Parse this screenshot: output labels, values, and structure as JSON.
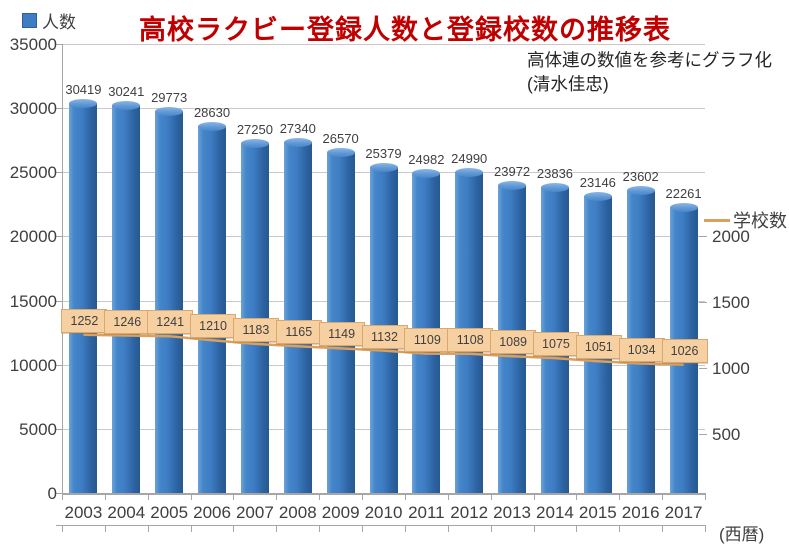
{
  "title": "高校ラクビー登録人数と登録校数の推移表",
  "annotation": {
    "line1": "高体連の数値を参考にグラフ化",
    "line2": "(清水佳忠)"
  },
  "legend": {
    "players": "人数",
    "schools": "学校数"
  },
  "axis_caption": "(西暦)",
  "colors": {
    "title_red": "#c00000",
    "bar_blue": "#3e7dc4",
    "line_orange": "#d9a05f",
    "label_box_fill": "#f7d0a2",
    "label_box_border": "#d8a873",
    "gridline": "#c9c9c9",
    "axis": "#a6a6a6",
    "text": "#3f3f3f"
  },
  "chart_data": {
    "type": "bar",
    "title": "高校ラクビー登録人数と登録校数の推移表",
    "categories": [
      "2003",
      "2004",
      "2005",
      "2006",
      "2007",
      "2008",
      "2009",
      "2010",
      "2011",
      "2012",
      "2013",
      "2014",
      "2015",
      "2016",
      "2017"
    ],
    "series": [
      {
        "name": "人数",
        "type": "bar",
        "axis": "left",
        "color": "#3e7dc4",
        "values": [
          30419,
          30241,
          29773,
          28630,
          27250,
          27340,
          26570,
          25379,
          24982,
          24990,
          23972,
          23836,
          23146,
          23602,
          22261
        ]
      },
      {
        "name": "学校数",
        "type": "line",
        "axis": "right",
        "color": "#d9a05f",
        "values": [
          1252,
          1246,
          1241,
          1210,
          1183,
          1165,
          1149,
          1132,
          1109,
          1108,
          1089,
          1075,
          1051,
          1034,
          1026
        ]
      }
    ],
    "left_axis": {
      "title": "人数",
      "min": 0,
      "max": 35000,
      "tick_step": 5000,
      "ticks": [
        0,
        5000,
        10000,
        15000,
        20000,
        25000,
        30000,
        35000
      ]
    },
    "right_axis": {
      "title": "学校数",
      "ticks": [
        500,
        1000,
        1500,
        2000
      ]
    },
    "xlabel": "(西暦)",
    "grid": true,
    "legend_position": "players top-left, schools right-middle",
    "data_labels": "shown for both series"
  }
}
